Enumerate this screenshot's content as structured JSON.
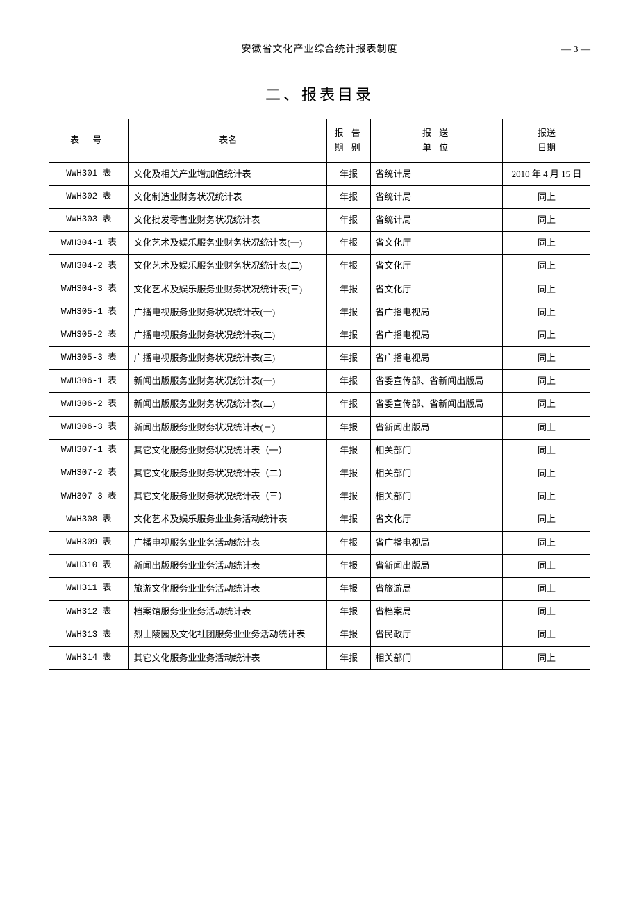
{
  "header": {
    "title": "安徽省文化产业综合统计报表制度",
    "page": "— 3 —"
  },
  "section_title": "二、报表目录",
  "columns": {
    "num": "表  号",
    "name": "表名",
    "period": "报 告\n期 别",
    "unit": "报 送\n单 位",
    "date": "报送\n日期"
  },
  "rows": [
    {
      "num": "WWH301 表",
      "name": "文化及相关产业增加值统计表",
      "period": "年报",
      "unit": "省统计局",
      "date": "2010 年 4 月 15 日"
    },
    {
      "num": "WWH302 表",
      "name": "文化制造业财务状况统计表",
      "period": "年报",
      "unit": "省统计局",
      "date": "同上"
    },
    {
      "num": "WWH303 表",
      "name": "文化批发零售业财务状况统计表",
      "period": "年报",
      "unit": "省统计局",
      "date": "同上"
    },
    {
      "num": "WWH304-1 表",
      "name": "文化艺术及娱乐服务业财务状况统计表(一)",
      "period": "年报",
      "unit": "省文化厅",
      "date": "同上"
    },
    {
      "num": "WWH304-2 表",
      "name": "文化艺术及娱乐服务业财务状况统计表(二)",
      "period": "年报",
      "unit": "省文化厅",
      "date": "同上"
    },
    {
      "num": "WWH304-3 表",
      "name": "文化艺术及娱乐服务业财务状况统计表(三)",
      "period": "年报",
      "unit": "省文化厅",
      "date": "同上"
    },
    {
      "num": "WWH305-1 表",
      "name": "广播电视服务业财务状况统计表(一)",
      "period": "年报",
      "unit": "省广播电视局",
      "date": "同上"
    },
    {
      "num": "WWH305-2 表",
      "name": "广播电视服务业财务状况统计表(二)",
      "period": "年报",
      "unit": "省广播电视局",
      "date": "同上"
    },
    {
      "num": "WWH305-3 表",
      "name": "广播电视服务业财务状况统计表(三)",
      "period": "年报",
      "unit": "省广播电视局",
      "date": "同上"
    },
    {
      "num": "WWH306-1 表",
      "name": "新闻出版服务业财务状况统计表(一)",
      "period": "年报",
      "unit": "省委宣传部、省新闻出版局",
      "date": "同上"
    },
    {
      "num": "WWH306-2 表",
      "name": "新闻出版服务业财务状况统计表(二)",
      "period": "年报",
      "unit": "省委宣传部、省新闻出版局",
      "date": "同上"
    },
    {
      "num": "WWH306-3 表",
      "name": "新闻出版服务业财务状况统计表(三)",
      "period": "年报",
      "unit": "省新闻出版局",
      "date": "同上"
    },
    {
      "num": "WWH307-1 表",
      "name": "其它文化服务业财务状况统计表（一）",
      "period": "年报",
      "unit": "相关部门",
      "date": "同上"
    },
    {
      "num": "WWH307-2 表",
      "name": "其它文化服务业财务状况统计表（二）",
      "period": "年报",
      "unit": "相关部门",
      "date": "同上"
    },
    {
      "num": "WWH307-3 表",
      "name": "其它文化服务业财务状况统计表（三）",
      "period": "年报",
      "unit": "相关部门",
      "date": "同上"
    },
    {
      "num": "WWH308 表",
      "name": "文化艺术及娱乐服务业业务活动统计表",
      "period": "年报",
      "unit": "省文化厅",
      "date": "同上"
    },
    {
      "num": "WWH309 表",
      "name": "广播电视服务业业务活动统计表",
      "period": "年报",
      "unit": "省广播电视局",
      "date": "同上"
    },
    {
      "num": "WWH310 表",
      "name": "新闻出版服务业业务活动统计表",
      "period": "年报",
      "unit": "省新闻出版局",
      "date": "同上"
    },
    {
      "num": "WWH311 表",
      "name": "旅游文化服务业业务活动统计表",
      "period": "年报",
      "unit": "省旅游局",
      "date": "同上"
    },
    {
      "num": "WWH312 表",
      "name": "档案馆服务业业务活动统计表",
      "period": "年报",
      "unit": "省档案局",
      "date": "同上"
    },
    {
      "num": "WWH313 表",
      "name": "烈士陵园及文化社团服务业业务活动统计表",
      "period": "年报",
      "unit": "省民政厅",
      "date": "同上"
    },
    {
      "num": "WWH314 表",
      "name": "其它文化服务业业务活动统计表",
      "period": "年报",
      "unit": "相关部门",
      "date": "同上"
    }
  ]
}
